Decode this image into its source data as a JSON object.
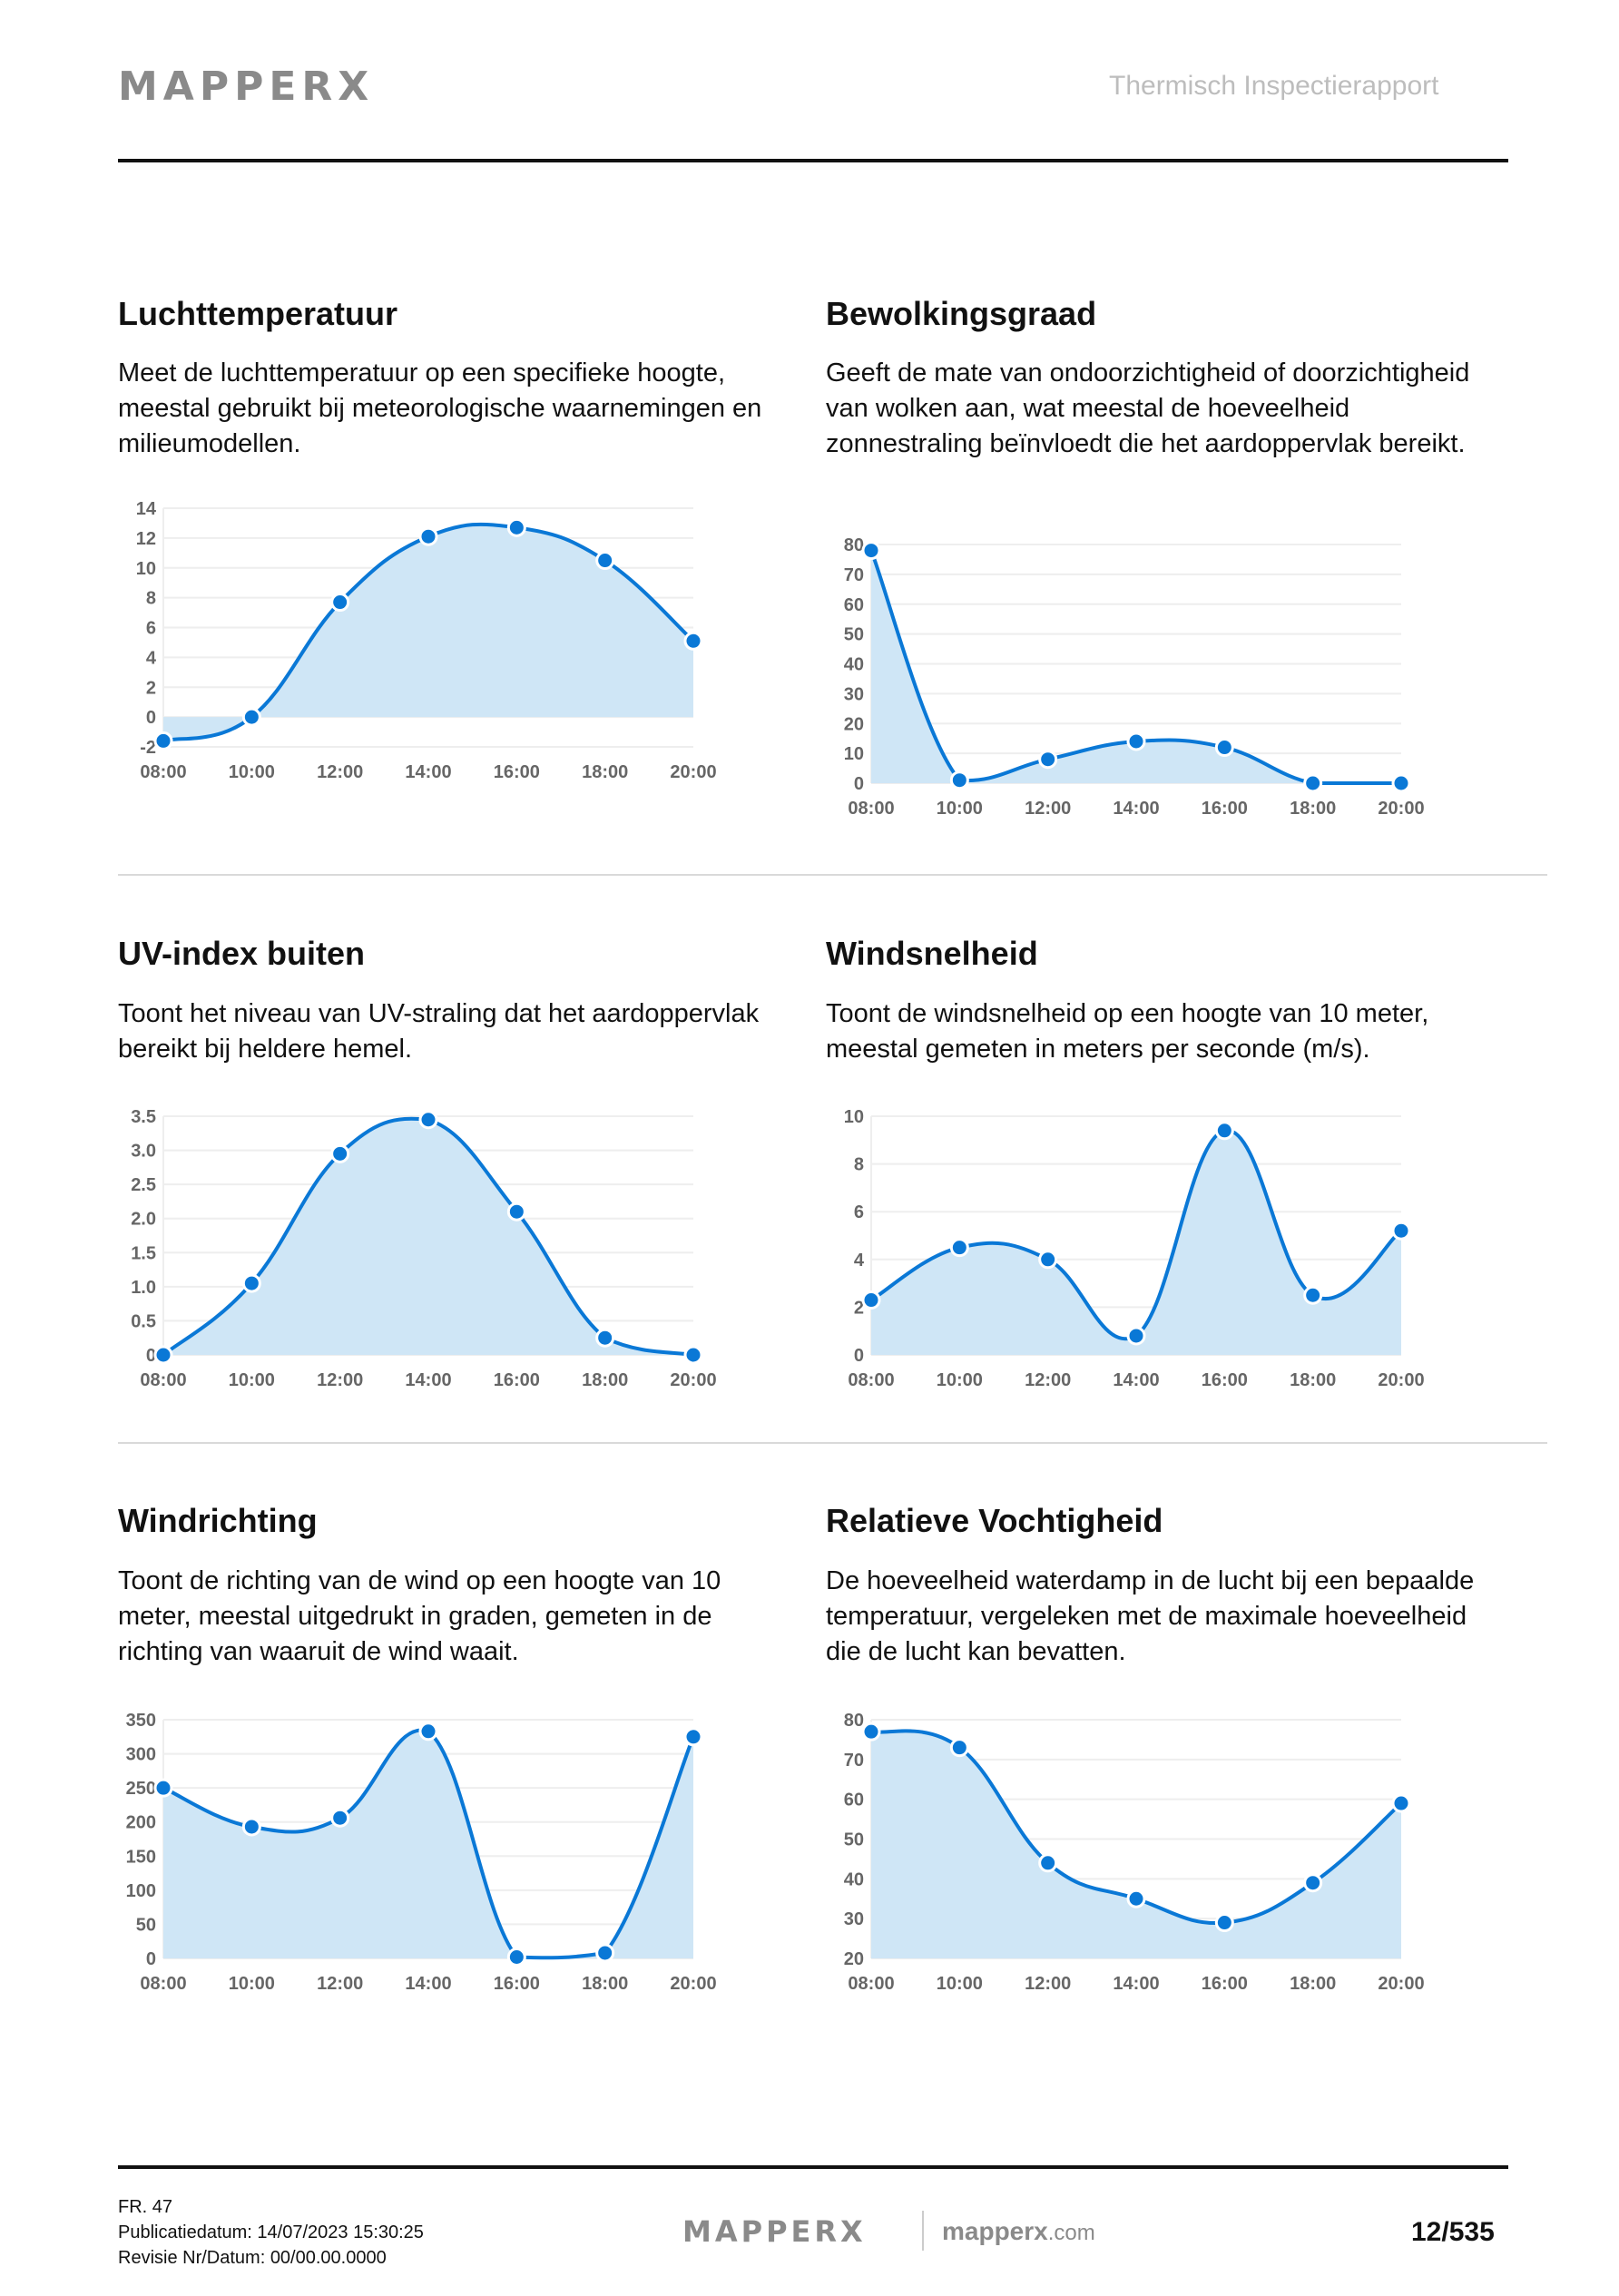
{
  "header": {
    "logo_text": "MAPPERX",
    "report_title": "Thermisch Inspectierapport"
  },
  "sections": [
    {
      "title": "Luchttemperatuur",
      "description": "Meet de luchttemperatuur op een specifieke hoogte, meestal gebruikt bij meteorologische waarnemingen en milieumodellen."
    },
    {
      "title": "Bewolkingsgraad",
      "description": "Geeft de mate van ondoorzichtigheid of doorzichtigheid van wolken aan, wat meestal de hoeveelheid zonnestraling beïnvloedt die het aardoppervlak bereikt."
    },
    {
      "title": "UV-index buiten",
      "description": "Toont het niveau van UV-straling dat het aardoppervlak bereikt bij heldere hemel."
    },
    {
      "title": "Windsnelheid",
      "description": "Toont de windsnelheid op een hoogte van 10 meter, meestal gemeten in meters per seconde (m/s)."
    },
    {
      "title": "Windrichting",
      "description": "Toont de richting van de wind op een hoogte van 10 meter, meestal uitgedrukt in graden, gemeten in de richting van waaruit de wind waait."
    },
    {
      "title": "Relatieve Vochtigheid",
      "description": "De hoeveelheid waterdamp in de lucht bij een bepaalde temperatuur, vergeleken met de maximale hoeveelheid die de lucht kan bevatten."
    }
  ],
  "colors": {
    "line": "#0a78d6",
    "fill": "#cfe6f6",
    "grid": "#eeeeee",
    "tick": "#666666"
  },
  "chart_data": [
    {
      "type": "area",
      "categories": [
        "08:00",
        "10:00",
        "12:00",
        "14:00",
        "16:00",
        "18:00",
        "20:00"
      ],
      "values": [
        -1.6,
        0,
        7.7,
        12.1,
        12.7,
        10.5,
        5.1
      ],
      "ylim": [
        -2,
        14
      ],
      "yticks": [
        "-2",
        "0",
        "2",
        "4",
        "6",
        "8",
        "10",
        "12",
        "14"
      ],
      "grid": true
    },
    {
      "type": "area",
      "categories": [
        "08:00",
        "10:00",
        "12:00",
        "14:00",
        "16:00",
        "18:00",
        "20:00"
      ],
      "values": [
        78,
        1,
        8,
        14,
        12,
        0,
        0
      ],
      "ylim": [
        0,
        80
      ],
      "yticks": [
        "0",
        "10",
        "20",
        "30",
        "40",
        "50",
        "60",
        "70",
        "80"
      ],
      "grid": true
    },
    {
      "type": "area",
      "categories": [
        "08:00",
        "10:00",
        "12:00",
        "14:00",
        "16:00",
        "18:00",
        "20:00"
      ],
      "values": [
        0,
        1.05,
        2.95,
        3.45,
        2.1,
        0.25,
        0
      ],
      "ylim": [
        0,
        3.5
      ],
      "yticks": [
        "0",
        "0.5",
        "1.0",
        "1.5",
        "2.0",
        "2.5",
        "3.0",
        "3.5"
      ],
      "grid": true
    },
    {
      "type": "area",
      "categories": [
        "08:00",
        "10:00",
        "12:00",
        "14:00",
        "16:00",
        "18:00",
        "20:00"
      ],
      "values": [
        2.3,
        4.5,
        4.0,
        0.8,
        9.4,
        2.5,
        5.2
      ],
      "ylim": [
        0,
        10
      ],
      "yticks": [
        "0",
        "2",
        "4",
        "6",
        "8",
        "10"
      ],
      "grid": true
    },
    {
      "type": "area",
      "categories": [
        "08:00",
        "10:00",
        "12:00",
        "14:00",
        "16:00",
        "18:00",
        "20:00"
      ],
      "values": [
        250,
        193,
        206,
        333,
        2,
        8,
        325
      ],
      "ylim": [
        0,
        350
      ],
      "yticks": [
        "0",
        "50",
        "100",
        "150",
        "200",
        "250",
        "300",
        "350"
      ],
      "grid": true
    },
    {
      "type": "area",
      "categories": [
        "08:00",
        "10:00",
        "12:00",
        "14:00",
        "16:00",
        "18:00",
        "20:00"
      ],
      "values": [
        77,
        73,
        44,
        35,
        29,
        39,
        59
      ],
      "ylim": [
        20,
        80
      ],
      "yticks": [
        "20",
        "30",
        "40",
        "50",
        "60",
        "70",
        "80"
      ],
      "grid": true
    }
  ],
  "footer": {
    "fr": "FR. 47",
    "published": "Publicatiedatum: 14/07/2023 15:30:25",
    "revision": "Revisie Nr/Datum: 00/00.00.0000",
    "logo_text": "MAPPERX",
    "site_main": "mapperx",
    "site_tld": ".com",
    "page": "12/535"
  }
}
